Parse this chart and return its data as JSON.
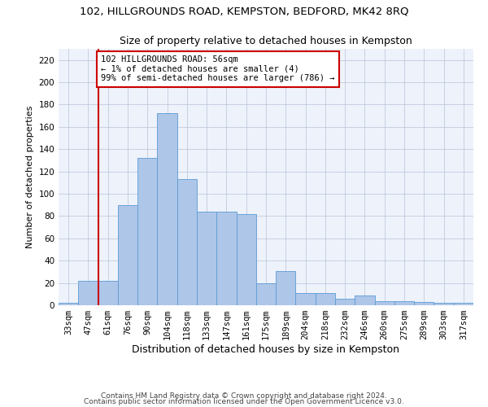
{
  "title1": "102, HILLGROUNDS ROAD, KEMPSTON, BEDFORD, MK42 8RQ",
  "title2": "Size of property relative to detached houses in Kempston",
  "xlabel": "Distribution of detached houses by size in Kempston",
  "ylabel": "Number of detached properties",
  "footnote1": "Contains HM Land Registry data © Crown copyright and database right 2024.",
  "footnote2": "Contains public sector information licensed under the Open Government Licence v3.0.",
  "annotation_title": "102 HILLGROUNDS ROAD: 56sqm",
  "annotation_line1": "← 1% of detached houses are smaller (4)",
  "annotation_line2": "99% of semi-detached houses are larger (786) →",
  "bar_color": "#aec6e8",
  "bar_edge_color": "#5b9bd5",
  "vline_color": "#cc0000",
  "annotation_box_edge_color": "#cc0000",
  "background_color": "#eef2fb",
  "categories": [
    "33sqm",
    "47sqm",
    "61sqm",
    "76sqm",
    "90sqm",
    "104sqm",
    "118sqm",
    "133sqm",
    "147sqm",
    "161sqm",
    "175sqm",
    "189sqm",
    "204sqm",
    "218sqm",
    "232sqm",
    "246sqm",
    "260sqm",
    "275sqm",
    "289sqm",
    "303sqm",
    "317sqm"
  ],
  "values": [
    2,
    22,
    22,
    90,
    132,
    172,
    113,
    84,
    84,
    82,
    20,
    31,
    11,
    11,
    6,
    9,
    4,
    4,
    3,
    2,
    2
  ],
  "ylim": [
    0,
    230
  ],
  "yticks": [
    0,
    20,
    40,
    60,
    80,
    100,
    120,
    140,
    160,
    180,
    200,
    220
  ],
  "vline_x_index": 1.5,
  "title1_fontsize": 9.5,
  "title2_fontsize": 9,
  "xlabel_fontsize": 9,
  "ylabel_fontsize": 8,
  "tick_fontsize": 7.5,
  "annotation_fontsize": 7.5,
  "footnote_fontsize": 6.5
}
